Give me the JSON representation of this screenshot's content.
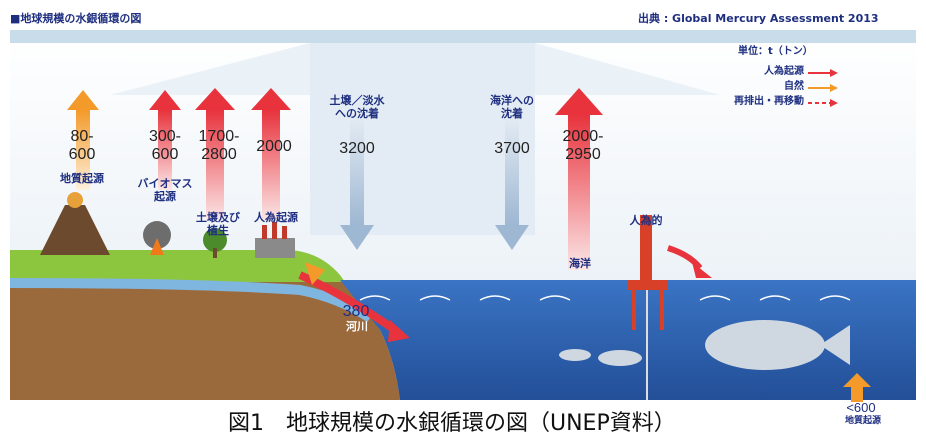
{
  "header": {
    "title": "■地球規模の水銀循環の図",
    "source": "出典 :  Global  Mercury  Assessment  2013"
  },
  "legend": {
    "unit": "単位：t（トン）",
    "items": [
      {
        "label": "人為起源",
        "color": "#e8333d"
      },
      {
        "label": "自然",
        "color": "#f39a2a"
      },
      {
        "label": "再排出・再移動",
        "color": "#e8333d"
      }
    ]
  },
  "flows": {
    "geogenic": {
      "value": "80-\n600",
      "label": "地質起源"
    },
    "biomass": {
      "value": "300-\n600",
      "label": "バイオマス\n起源"
    },
    "soil_veg": {
      "value": "1700-\n2800",
      "label": "土壌及び\n植生"
    },
    "anthropogenic": {
      "value": "2000",
      "label": "人為起源"
    },
    "deposition_land": {
      "value": "3200",
      "label": "土壌／淡水\nへの沈着"
    },
    "deposition_ocean": {
      "value": "3700",
      "label": "海洋への\n沈着"
    },
    "ocean": {
      "value": "2000-\n2950",
      "label": "海洋"
    },
    "ocean_anthropogenic": {
      "label": "人為的"
    },
    "river": {
      "value": "380",
      "label": "河川"
    },
    "seafloor": {
      "value": "<600",
      "label": "地質起源"
    }
  },
  "caption": "図1　地球規模の水銀循環の図（UNEP資料）",
  "colors": {
    "sky": "#eef3f8",
    "band": "#c9dcea",
    "sea": "#2f66b5",
    "sea_deep": "#23519c",
    "soil": "#9b6a3c",
    "grass": "#8cc63f",
    "red_arrow": "#e8333d",
    "orange_arrow": "#f39a2a",
    "blue_arrow": "#9eb7d2"
  }
}
